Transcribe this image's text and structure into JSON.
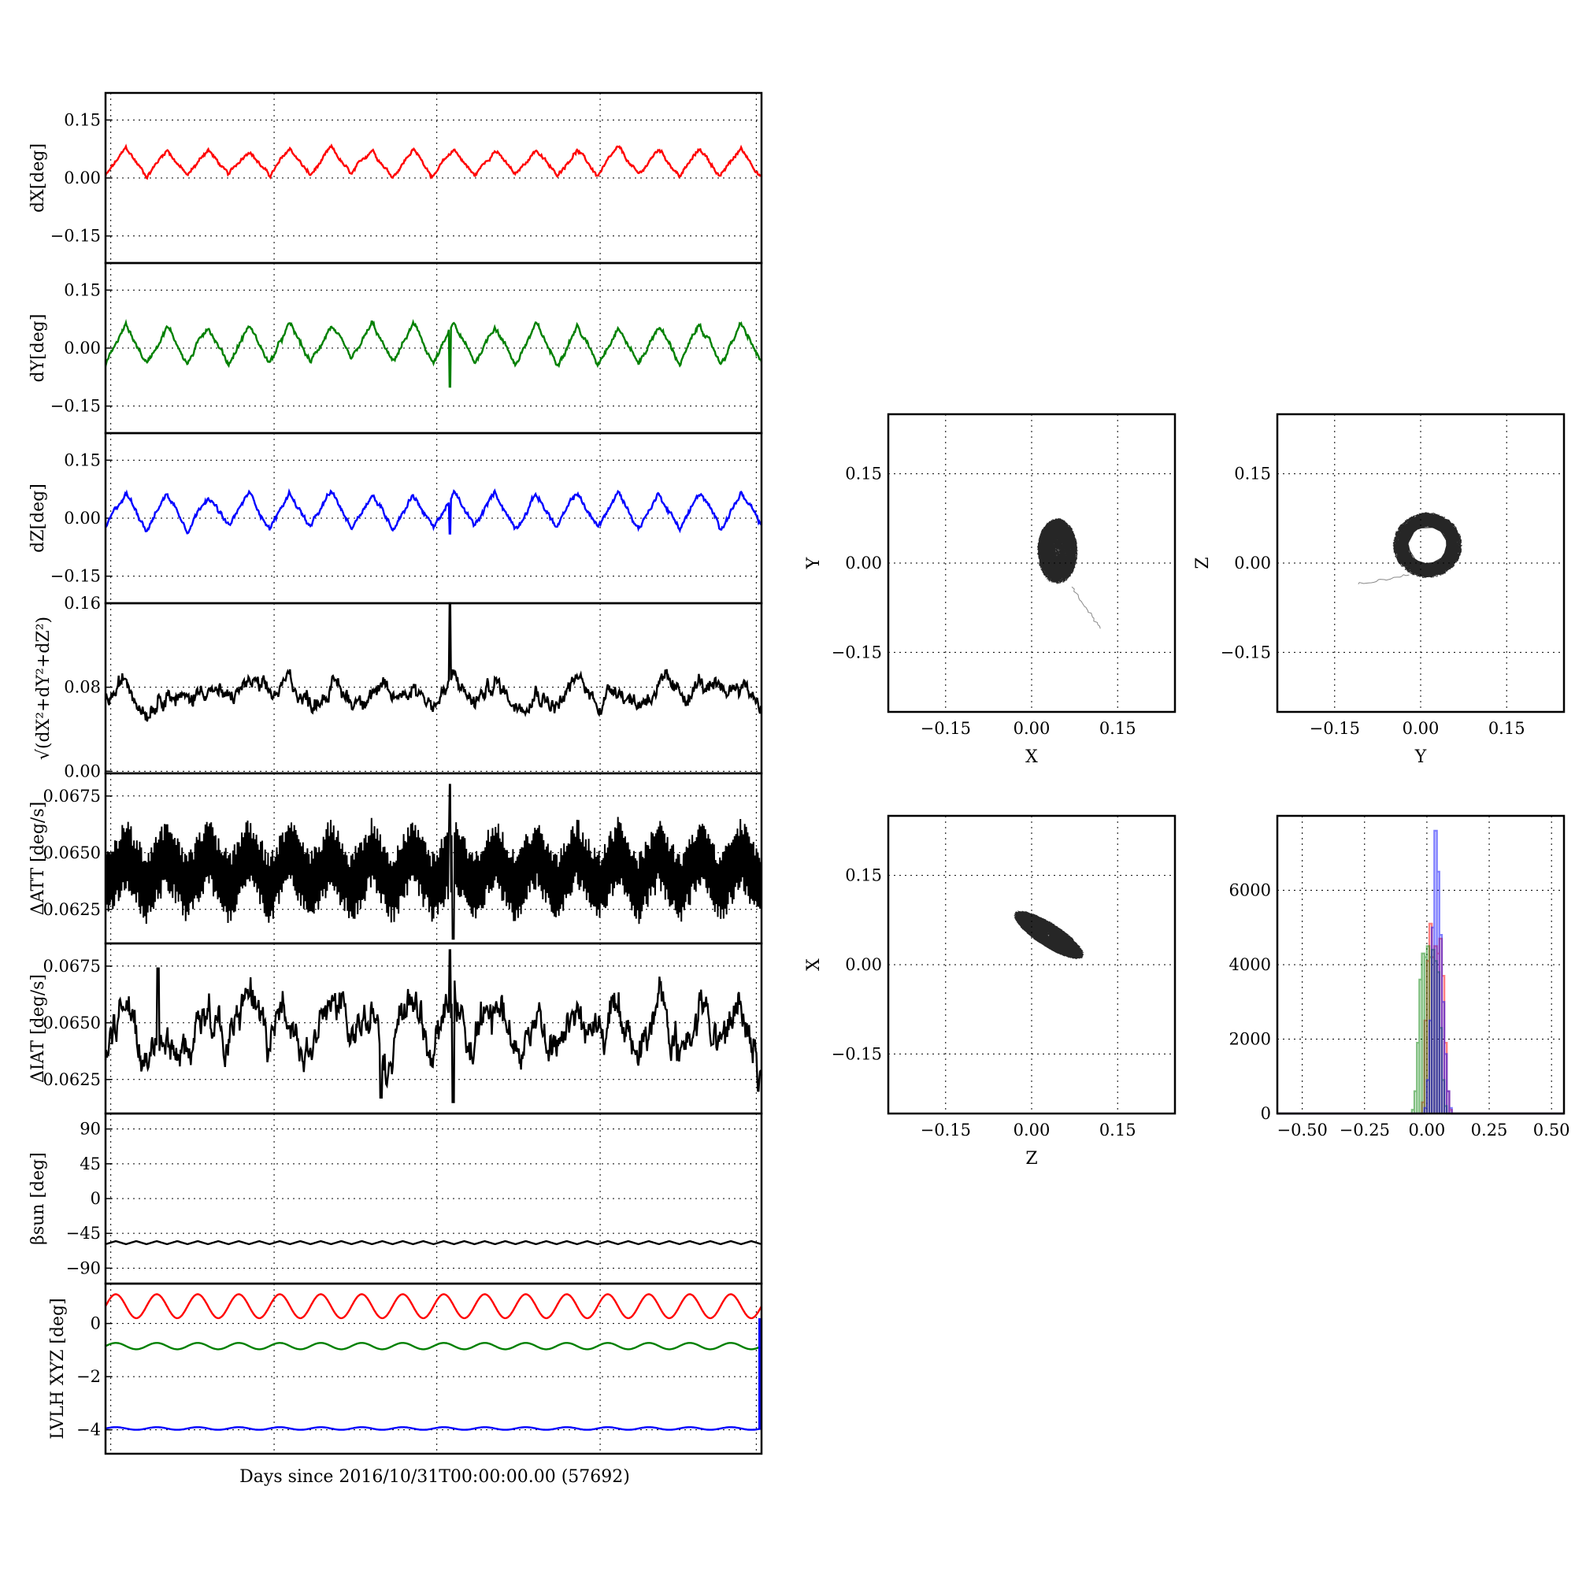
{
  "xlabel": "Days since 2016/10/31T00:00:00.00 (57692)",
  "chart_data": [
    {
      "id": "dX",
      "type": "line",
      "ylabel": "dX[deg]",
      "ylim": [
        -0.22,
        0.22
      ],
      "yticks": [
        0.15,
        0.0,
        -0.15
      ],
      "ytick_labels": [
        "0.15",
        "0.00",
        "−0.15"
      ],
      "color": "#ff0000",
      "base": 0.04,
      "amp": 0.035,
      "periods": 16,
      "noise": 0.006,
      "spikes": [
        [
          0.525,
          0.06
        ]
      ]
    },
    {
      "id": "dY",
      "type": "line",
      "ylabel": "dY[deg]",
      "ylim": [
        -0.22,
        0.22
      ],
      "yticks": [
        0.15,
        0.0,
        -0.15
      ],
      "ytick_labels": [
        "0.15",
        "0.00",
        "−0.15"
      ],
      "color": "#008000",
      "base": 0.01,
      "amp": 0.05,
      "periods": 16,
      "noise": 0.008,
      "spikes": [
        [
          0.525,
          -0.1
        ]
      ]
    },
    {
      "id": "dZ",
      "type": "line",
      "ylabel": "dZ[deg]",
      "ylim": [
        -0.22,
        0.22
      ],
      "yticks": [
        0.15,
        0.0,
        -0.15
      ],
      "ytick_labels": [
        "0.15",
        "0.00",
        "−0.15"
      ],
      "color": "#0000ff",
      "base": 0.02,
      "amp": 0.045,
      "periods": 16,
      "noise": 0.008,
      "spikes": [
        [
          0.525,
          -0.04
        ]
      ]
    },
    {
      "id": "dR",
      "type": "line",
      "ylabel": "√(dX²+dY²+dZ²)",
      "ylim": [
        -0.002,
        0.16
      ],
      "yticks": [
        0.16,
        0.08,
        0.0
      ],
      "ytick_labels": [
        "0.16",
        "0.08",
        "0.00"
      ],
      "color": "#000000",
      "base": 0.075,
      "amp": 0.01,
      "periods": 16,
      "noise": 0.01,
      "spikes": [
        [
          0.525,
          0.165
        ]
      ]
    },
    {
      "id": "dATT",
      "type": "line",
      "ylabel": "ΔATT [deg/s]",
      "ylim": [
        0.061,
        0.0685
      ],
      "yticks": [
        0.0675,
        0.065,
        0.0625
      ],
      "ytick_labels": [
        "0.0675",
        "0.0650",
        "0.0625"
      ],
      "color": "#000000",
      "base": 0.0642,
      "amp": 0.0008,
      "periods": 16,
      "noise": 0.0016,
      "spikes": [
        [
          0.525,
          0.068
        ],
        [
          0.53,
          0.0612
        ]
      ]
    },
    {
      "id": "dIAT",
      "type": "line",
      "ylabel": "ΔIAT [deg/s]",
      "ylim": [
        0.061,
        0.0685
      ],
      "yticks": [
        0.0675,
        0.065,
        0.0625
      ],
      "ytick_labels": [
        "0.0675",
        "0.0650",
        "0.0625"
      ],
      "color": "#000000",
      "base": 0.0648,
      "amp": 0.0012,
      "periods": 16,
      "noise": 0.001,
      "spikes": [
        [
          0.525,
          0.0682
        ],
        [
          0.53,
          0.0615
        ],
        [
          0.42,
          0.0617
        ],
        [
          0.08,
          0.0674
        ],
        [
          0.995,
          0.062
        ]
      ]
    },
    {
      "id": "beta",
      "type": "line",
      "ylabel": "βsun [deg]",
      "ylim": [
        -110,
        110
      ],
      "yticks": [
        90,
        45,
        0,
        -45,
        -90
      ],
      "ytick_labels": [
        "90",
        "45",
        "0",
        "−45",
        "−90"
      ],
      "color": "#000000",
      "base": -57,
      "amp": 2,
      "periods": 32,
      "noise": 0,
      "spikes": []
    },
    {
      "id": "lvlh",
      "type": "line",
      "ylabel": "LVLH XYZ [deg]",
      "ylim": [
        -4.9,
        1.5
      ],
      "yticks": [
        0,
        -2,
        -4
      ],
      "ytick_labels": [
        "0",
        "−2",
        "−4"
      ],
      "series": [
        {
          "name": "X",
          "color": "#ff0000",
          "base": 0.65,
          "amp": 0.45,
          "periods": 16
        },
        {
          "name": "Y",
          "color": "#008000",
          "base": -0.85,
          "amp": 0.12,
          "periods": 16
        },
        {
          "name": "Z",
          "color": "#0000ff",
          "base": -3.95,
          "amp": 0.05,
          "periods": 16
        }
      ]
    },
    {
      "id": "XY",
      "type": "scatter",
      "xlabel": "X",
      "ylabel": "Y",
      "xlim": [
        -0.25,
        0.25
      ],
      "ylim": [
        -0.25,
        0.25
      ],
      "ticks": [
        -0.15,
        0.0,
        0.15
      ],
      "tick_labels": [
        "−0.15",
        "0.00",
        "0.15"
      ],
      "cx": 0.045,
      "cy": 0.02,
      "rx": 0.035,
      "ry": 0.055,
      "tilt": 0,
      "hole": false,
      "tail": [
        [
          0.07,
          -0.04
        ],
        [
          0.12,
          -0.11
        ]
      ]
    },
    {
      "id": "YZ",
      "type": "scatter",
      "xlabel": "Y",
      "ylabel": "Z",
      "xlim": [
        -0.25,
        0.25
      ],
      "ylim": [
        -0.25,
        0.25
      ],
      "ticks": [
        -0.15,
        0.0,
        0.15
      ],
      "tick_labels": [
        "−0.15",
        "0.00",
        "0.15"
      ],
      "cx": 0.012,
      "cy": 0.03,
      "rx": 0.06,
      "ry": 0.055,
      "tilt": 0,
      "hole": true,
      "tail": [
        [
          -0.02,
          -0.02
        ],
        [
          -0.11,
          -0.035
        ]
      ]
    },
    {
      "id": "ZX",
      "type": "scatter",
      "xlabel": "Z",
      "ylabel": "X",
      "xlim": [
        -0.25,
        0.25
      ],
      "ylim": [
        -0.25,
        0.25
      ],
      "ticks": [
        -0.15,
        0.0,
        0.15
      ],
      "tick_labels": [
        "−0.15",
        "0.00",
        "0.15"
      ],
      "cx": 0.03,
      "cy": 0.05,
      "rx": 0.07,
      "ry": 0.02,
      "tilt": -0.55,
      "hole": false,
      "tail": []
    },
    {
      "id": "hist",
      "type": "histogram",
      "xlim": [
        -0.6,
        0.55
      ],
      "ylim": [
        0,
        8000
      ],
      "xticks": [
        -0.5,
        -0.25,
        0.0,
        0.25,
        0.5
      ],
      "xtick_labels": [
        "−0.50",
        "−0.25",
        "0.00",
        "0.25",
        "0.50"
      ],
      "yticks": [
        6000,
        4000,
        2000,
        0
      ],
      "ytick_labels": [
        "6000",
        "4000",
        "2000",
        "0"
      ],
      "series": [
        {
          "name": "X",
          "color": "#ff0000",
          "bins": [
            [
              -0.02,
              300
            ],
            [
              -0.01,
              2500
            ],
            [
              0.0,
              4100
            ],
            [
              0.01,
              5100
            ],
            [
              0.02,
              4200
            ],
            [
              0.03,
              4500
            ],
            [
              0.04,
              4300
            ],
            [
              0.05,
              4700
            ],
            [
              0.06,
              3700
            ],
            [
              0.07,
              1900
            ],
            [
              0.08,
              600
            ],
            [
              0.09,
              100
            ]
          ]
        },
        {
          "name": "Y",
          "color": "#008000",
          "bins": [
            [
              -0.06,
              100
            ],
            [
              -0.05,
              600
            ],
            [
              -0.04,
              1900
            ],
            [
              -0.03,
              3600
            ],
            [
              -0.02,
              4300
            ],
            [
              -0.01,
              4200
            ],
            [
              0.0,
              4500
            ],
            [
              0.01,
              4200
            ],
            [
              0.02,
              4400
            ],
            [
              0.03,
              4100
            ],
            [
              0.04,
              3800
            ],
            [
              0.05,
              2300
            ],
            [
              0.06,
              900
            ],
            [
              0.07,
              200
            ]
          ]
        },
        {
          "name": "Z",
          "color": "#0000ff",
          "bins": [
            [
              -0.01,
              150
            ],
            [
              0.0,
              900
            ],
            [
              0.01,
              2500
            ],
            [
              0.02,
              5000
            ],
            [
              0.03,
              7600
            ],
            [
              0.04,
              6500
            ],
            [
              0.05,
              4800
            ],
            [
              0.06,
              3000
            ],
            [
              0.07,
              1600
            ],
            [
              0.08,
              600
            ],
            [
              0.09,
              150
            ]
          ]
        }
      ]
    }
  ]
}
